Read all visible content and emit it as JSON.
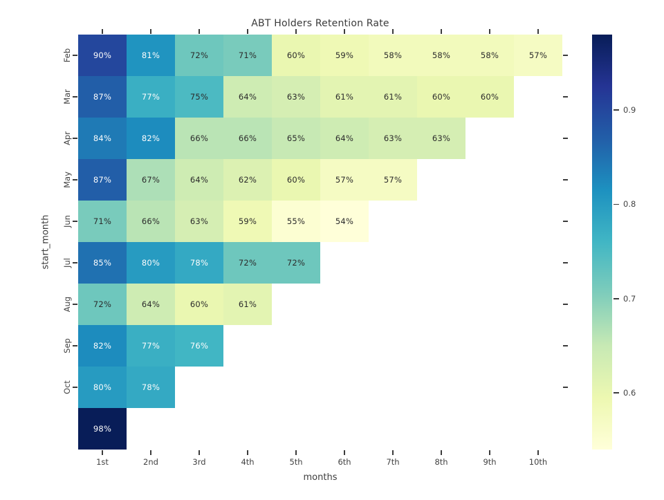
{
  "chart_data": {
    "type": "heatmap",
    "title": "ABT Holders Retention Rate",
    "xlabel": "months",
    "ylabel": "start_month",
    "x_ticklabels": [
      "1st",
      "2nd",
      "3rd",
      "4th",
      "5th",
      "6th",
      "7th",
      "8th",
      "9th",
      "10th"
    ],
    "y_ticklabels": [
      "Feb",
      "Mar",
      "Apr",
      "May",
      "Jun",
      "Jul",
      "Aug",
      "Sep",
      "Oct",
      ""
    ],
    "annotation_format": "percent",
    "values_pct": [
      [
        90,
        81,
        72,
        71,
        60,
        59,
        58,
        58,
        58,
        57
      ],
      [
        87,
        77,
        75,
        64,
        63,
        61,
        61,
        60,
        60,
        null
      ],
      [
        84,
        82,
        66,
        66,
        65,
        64,
        63,
        63,
        null,
        null
      ],
      [
        87,
        67,
        64,
        62,
        60,
        57,
        57,
        null,
        null,
        null
      ],
      [
        71,
        66,
        63,
        59,
        55,
        54,
        null,
        null,
        null,
        null
      ],
      [
        85,
        80,
        78,
        72,
        72,
        null,
        null,
        null,
        null,
        null
      ],
      [
        72,
        64,
        60,
        61,
        null,
        null,
        null,
        null,
        null,
        null
      ],
      [
        82,
        77,
        76,
        null,
        null,
        null,
        null,
        null,
        null,
        null
      ],
      [
        80,
        78,
        null,
        null,
        null,
        null,
        null,
        null,
        null,
        null
      ],
      [
        98,
        null,
        null,
        null,
        null,
        null,
        null,
        null,
        null,
        null
      ]
    ],
    "colormap": "YlGnBu",
    "color_scale": {
      "vmin": 0.54,
      "vmax": 0.98
    },
    "colorbar": {
      "tick_values": [
        0.9,
        0.8,
        0.7,
        0.6
      ],
      "tick_labels": [
        "0.9",
        "0.8",
        "0.7",
        "0.6"
      ],
      "position": "right"
    },
    "grid": false
  },
  "style": {
    "ylgnbu_stops": [
      [
        0.0,
        "#ffffd9"
      ],
      [
        0.125,
        "#edf8b1"
      ],
      [
        0.25,
        "#c7e9b4"
      ],
      [
        0.375,
        "#7fcdbb"
      ],
      [
        0.5,
        "#41b6c4"
      ],
      [
        0.625,
        "#1d91c0"
      ],
      [
        0.75,
        "#225ea8"
      ],
      [
        0.875,
        "#253494"
      ],
      [
        1.0,
        "#081d58"
      ]
    ],
    "annot_dark": "#2b2b2b",
    "annot_light": "#fdfdfd",
    "tick_mark_color": "#3b3b3b",
    "tick_label_color": "#424242",
    "title_color": "#3a3a3a",
    "axis_label_color": "#3d3d3d",
    "background": "#ffffff"
  }
}
